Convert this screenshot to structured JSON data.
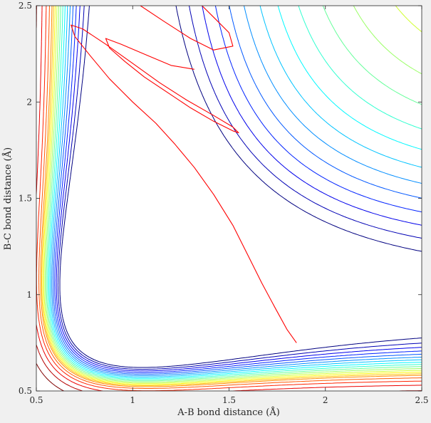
{
  "chart_data": {
    "type": "contour",
    "xlabel": "A-B bond distance (Å)",
    "ylabel": "B-C bond distance (Å)",
    "xlim": [
      0.5,
      2.5
    ],
    "ylim": [
      0.5,
      2.5
    ],
    "xticks": [
      0.5,
      1,
      1.5,
      2,
      2.5
    ],
    "xtick_labels": [
      "0.5",
      "1",
      "1.5",
      "2",
      "2.5"
    ],
    "yticks": [
      0.5,
      1,
      1.5,
      2,
      2.5
    ],
    "ytick_labels": [
      "0.5",
      "1",
      "1.5",
      "2",
      "2.5"
    ],
    "grid": false,
    "colormap": "jet",
    "colors": {
      "background": "#f0f0f0",
      "axes_background": "#ffffff",
      "trajectory": "#ff0000",
      "axis_line": "#262626"
    },
    "potential": {
      "description_level_count": 20,
      "levels": [
        -4.4,
        -4.1,
        -3.8,
        -3.5,
        -3.2,
        -2.9,
        -2.6,
        -2.3,
        -2.0,
        -1.7,
        -1.4,
        -1.1,
        -0.8,
        -0.5,
        -0.2,
        0.3,
        1.0,
        2.0,
        3.5,
        6.0
      ]
    },
    "trajectory": [
      [
        1.85,
        0.75
      ],
      [
        1.8,
        0.82
      ],
      [
        1.74,
        0.93
      ],
      [
        1.67,
        1.06
      ],
      [
        1.6,
        1.2
      ],
      [
        1.52,
        1.36
      ],
      [
        1.42,
        1.52
      ],
      [
        1.32,
        1.66
      ],
      [
        1.22,
        1.78
      ],
      [
        1.12,
        1.89
      ],
      [
        1.0,
        2.0
      ],
      [
        0.88,
        2.12
      ],
      [
        0.78,
        2.24
      ],
      [
        0.7,
        2.34
      ],
      [
        0.68,
        2.4
      ],
      [
        0.74,
        2.38
      ],
      [
        0.86,
        2.3
      ],
      [
        1.0,
        2.2
      ],
      [
        1.14,
        2.1
      ],
      [
        1.28,
        2.01
      ],
      [
        1.42,
        1.93
      ],
      [
        1.52,
        1.87
      ],
      [
        1.55,
        1.84
      ],
      [
        1.52,
        1.85
      ],
      [
        1.42,
        1.9
      ],
      [
        1.3,
        1.97
      ],
      [
        1.18,
        2.05
      ],
      [
        1.06,
        2.13
      ],
      [
        0.96,
        2.21
      ],
      [
        0.88,
        2.28
      ],
      [
        0.86,
        2.33
      ],
      [
        0.94,
        2.3
      ],
      [
        1.08,
        2.24
      ],
      [
        1.2,
        2.19
      ],
      [
        1.32,
        2.17
      ]
    ],
    "trajectory_upper": [
      [
        1.04,
        2.5
      ],
      [
        1.16,
        2.42
      ],
      [
        1.3,
        2.33
      ],
      [
        1.42,
        2.27
      ],
      [
        1.52,
        2.29
      ],
      [
        1.5,
        2.36
      ],
      [
        1.42,
        2.44
      ],
      [
        1.36,
        2.5
      ]
    ]
  }
}
